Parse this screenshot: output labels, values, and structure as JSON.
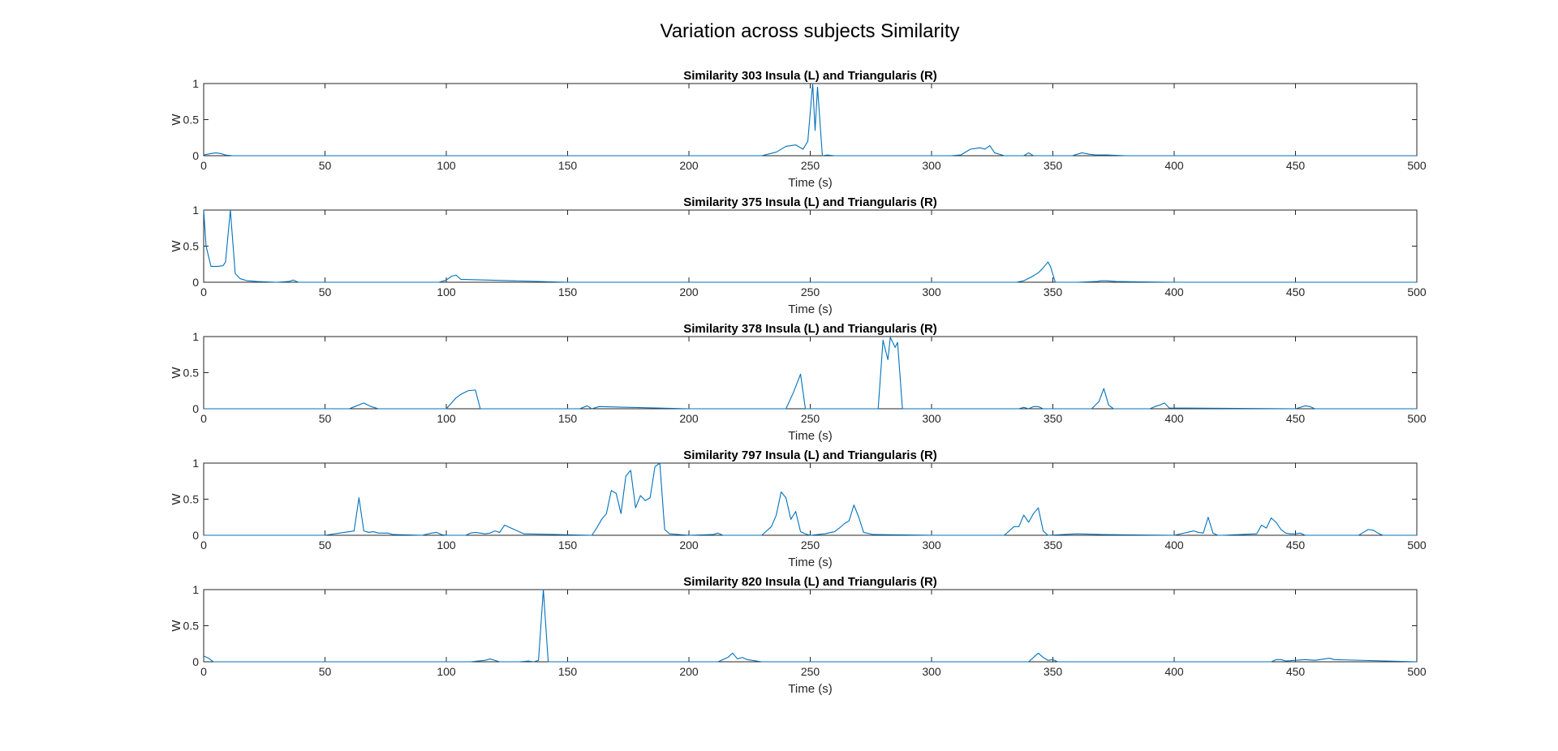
{
  "figure": {
    "title": "Variation across subjects Similarity",
    "line_color": "#0072BD",
    "axis_color": "#262626"
  },
  "chart_data": [
    {
      "type": "line",
      "title": "Similarity 303 Insula (L) and Triangularis (R)",
      "xlabel": "Time (s)",
      "ylabel": "W",
      "xlim": [
        0,
        500
      ],
      "ylim": [
        0,
        1
      ],
      "xticks": [
        "0",
        "50",
        "100",
        "150",
        "200",
        "250",
        "300",
        "350",
        "400",
        "450",
        "500"
      ],
      "yticks": [
        "0",
        "0.5",
        "1"
      ],
      "grid": false,
      "x": [
        0,
        3,
        5,
        7,
        9,
        12,
        50,
        100,
        150,
        200,
        230,
        236,
        240,
        244,
        247,
        249,
        251,
        252,
        253,
        255,
        257,
        260,
        265,
        300,
        308,
        312,
        316,
        318,
        320,
        322,
        324,
        326,
        330,
        338,
        340,
        342,
        350,
        358,
        362,
        365,
        368,
        372,
        380,
        400,
        450,
        500
      ],
      "y": [
        0.01,
        0.03,
        0.04,
        0.03,
        0.01,
        0.0,
        0.0,
        0.0,
        0.0,
        0.0,
        0.0,
        0.05,
        0.13,
        0.15,
        0.09,
        0.2,
        1.0,
        0.35,
        0.95,
        0.0,
        0.01,
        0.0,
        0.0,
        0.0,
        0.0,
        0.01,
        0.09,
        0.1,
        0.11,
        0.09,
        0.14,
        0.04,
        0.0,
        0.0,
        0.04,
        0.0,
        0.0,
        0.0,
        0.04,
        0.02,
        0.01,
        0.01,
        0.0,
        0.0,
        0.0,
        0.0
      ]
    },
    {
      "type": "line",
      "title": "Similarity 375 Insula (L) and Triangularis (R)",
      "xlabel": "Time (s)",
      "ylabel": "W",
      "xlim": [
        0,
        500
      ],
      "ylim": [
        0,
        1
      ],
      "xticks": [
        "0",
        "50",
        "100",
        "150",
        "200",
        "250",
        "300",
        "350",
        "400",
        "450",
        "500"
      ],
      "yticks": [
        "0",
        "0.5",
        "1"
      ],
      "grid": false,
      "x": [
        0,
        1,
        3,
        6,
        8,
        9,
        11,
        13,
        15,
        18,
        22,
        30,
        35,
        37,
        39,
        50,
        97,
        100,
        102,
        104,
        106,
        150,
        200,
        300,
        335,
        338,
        341,
        344,
        346,
        348,
        349,
        351,
        360,
        368,
        370,
        372,
        376,
        400,
        450,
        500
      ],
      "y": [
        1.0,
        0.5,
        0.22,
        0.22,
        0.23,
        0.28,
        1.0,
        0.12,
        0.05,
        0.02,
        0.01,
        0.0,
        0.01,
        0.03,
        0.0,
        0.0,
        0.0,
        0.03,
        0.08,
        0.1,
        0.04,
        0.0,
        0.0,
        0.0,
        0.0,
        0.02,
        0.07,
        0.13,
        0.2,
        0.28,
        0.22,
        0.0,
        0.0,
        0.01,
        0.02,
        0.02,
        0.01,
        0.0,
        0.0,
        0.0
      ]
    },
    {
      "type": "line",
      "title": "Similarity 378 Insula (L) and Triangularis (R)",
      "xlabel": "Time (s)",
      "ylabel": "W",
      "xlim": [
        0,
        500
      ],
      "ylim": [
        0,
        1
      ],
      "xticks": [
        "0",
        "50",
        "100",
        "150",
        "200",
        "250",
        "300",
        "350",
        "400",
        "450",
        "500"
      ],
      "yticks": [
        "0",
        "0.5",
        "1"
      ],
      "grid": false,
      "x": [
        0,
        60,
        63,
        66,
        69,
        72,
        100,
        104,
        106,
        109,
        112,
        114,
        150,
        155,
        158,
        160,
        163,
        200,
        240,
        243,
        246,
        248,
        250,
        270,
        276,
        278,
        280,
        282,
        283,
        285,
        286,
        288,
        290,
        300,
        336,
        338,
        340,
        342,
        344,
        346,
        366,
        369,
        371,
        373,
        375,
        390,
        392,
        394,
        396,
        398,
        450,
        452,
        454,
        456,
        458,
        500
      ],
      "y": [
        0.0,
        0.0,
        0.04,
        0.08,
        0.03,
        0.0,
        0.0,
        0.15,
        0.2,
        0.25,
        0.26,
        0.0,
        0.0,
        0.0,
        0.04,
        0.0,
        0.03,
        0.0,
        0.0,
        0.22,
        0.48,
        0.0,
        0.0,
        0.0,
        0.0,
        0.0,
        0.95,
        0.68,
        0.99,
        0.85,
        0.92,
        0.0,
        0.0,
        0.0,
        0.0,
        0.02,
        0.0,
        0.03,
        0.03,
        0.0,
        0.0,
        0.1,
        0.28,
        0.05,
        0.0,
        0.0,
        0.03,
        0.05,
        0.08,
        0.01,
        0.0,
        0.02,
        0.04,
        0.03,
        0.0,
        0.0
      ]
    },
    {
      "type": "line",
      "title": "Similarity 797 Insula (L) and Triangularis (R)",
      "xlabel": "Time (s)",
      "ylabel": "W",
      "xlim": [
        0,
        500
      ],
      "ylim": [
        0,
        1
      ],
      "xticks": [
        "0",
        "50",
        "100",
        "150",
        "200",
        "250",
        "300",
        "350",
        "400",
        "450",
        "500"
      ],
      "yticks": [
        "0",
        "0.5",
        "1"
      ],
      "grid": false,
      "x": [
        0,
        50,
        56,
        60,
        62,
        64,
        66,
        68,
        70,
        72,
        76,
        78,
        90,
        94,
        96,
        98,
        100,
        108,
        110,
        112,
        116,
        118,
        120,
        122,
        124,
        128,
        132,
        160,
        162,
        164,
        166,
        168,
        170,
        172,
        174,
        176,
        178,
        180,
        182,
        184,
        186,
        188,
        190,
        192,
        200,
        210,
        212,
        214,
        230,
        234,
        236,
        238,
        240,
        242,
        244,
        246,
        248,
        250,
        256,
        260,
        262,
        264,
        266,
        268,
        270,
        272,
        276,
        300,
        330,
        334,
        336,
        338,
        340,
        342,
        344,
        346,
        348,
        360,
        370,
        400,
        408,
        410,
        412,
        414,
        416,
        418,
        420,
        434,
        436,
        438,
        440,
        442,
        444,
        446,
        448,
        450,
        452,
        454,
        456,
        460,
        476,
        478,
        480,
        482,
        484,
        486,
        500
      ],
      "y": [
        0.0,
        0.0,
        0.03,
        0.05,
        0.06,
        0.52,
        0.06,
        0.04,
        0.05,
        0.03,
        0.03,
        0.01,
        0.0,
        0.03,
        0.04,
        0.01,
        0.0,
        0.0,
        0.03,
        0.04,
        0.02,
        0.03,
        0.06,
        0.04,
        0.14,
        0.08,
        0.02,
        0.0,
        0.1,
        0.22,
        0.3,
        0.62,
        0.58,
        0.3,
        0.82,
        0.9,
        0.38,
        0.55,
        0.48,
        0.52,
        0.95,
        1.0,
        0.08,
        0.02,
        0.0,
        0.01,
        0.03,
        0.0,
        0.0,
        0.12,
        0.28,
        0.6,
        0.52,
        0.22,
        0.33,
        0.05,
        0.02,
        0.0,
        0.02,
        0.05,
        0.1,
        0.16,
        0.2,
        0.42,
        0.25,
        0.04,
        0.01,
        0.0,
        0.0,
        0.12,
        0.12,
        0.28,
        0.18,
        0.3,
        0.38,
        0.06,
        0.0,
        0.02,
        0.01,
        0.0,
        0.06,
        0.04,
        0.03,
        0.25,
        0.03,
        0.0,
        0.0,
        0.02,
        0.14,
        0.1,
        0.24,
        0.18,
        0.08,
        0.03,
        0.02,
        0.02,
        0.03,
        0.0,
        0.0,
        0.0,
        0.0,
        0.04,
        0.08,
        0.07,
        0.03,
        0.0,
        0.0
      ]
    },
    {
      "type": "line",
      "title": "Similarity 820 Insula (L) and Triangularis (R)",
      "xlabel": "Time (s)",
      "ylabel": "W",
      "xlim": [
        0,
        500
      ],
      "ylim": [
        0,
        1
      ],
      "xticks": [
        "0",
        "50",
        "100",
        "150",
        "200",
        "250",
        "300",
        "350",
        "400",
        "450",
        "500"
      ],
      "yticks": [
        "0",
        "0.5",
        "1"
      ],
      "grid": false,
      "x": [
        0,
        2,
        4,
        50,
        110,
        116,
        118,
        120,
        122,
        130,
        134,
        136,
        138,
        140,
        142,
        144,
        150,
        200,
        212,
        216,
        218,
        220,
        222,
        224,
        226,
        230,
        300,
        340,
        342,
        344,
        346,
        348,
        350,
        352,
        356,
        400,
        440,
        442,
        444,
        446,
        450,
        454,
        458,
        460,
        462,
        464,
        466,
        500
      ],
      "y": [
        0.08,
        0.05,
        0.0,
        0.0,
        0.0,
        0.02,
        0.04,
        0.02,
        0.0,
        0.0,
        0.01,
        0.0,
        0.02,
        1.0,
        0.0,
        0.0,
        0.0,
        0.0,
        0.0,
        0.06,
        0.12,
        0.04,
        0.06,
        0.03,
        0.02,
        0.0,
        0.0,
        0.0,
        0.06,
        0.12,
        0.06,
        0.02,
        0.03,
        0.0,
        0.0,
        0.0,
        0.0,
        0.03,
        0.03,
        0.01,
        0.02,
        0.03,
        0.02,
        0.03,
        0.04,
        0.05,
        0.03,
        0.0
      ]
    }
  ]
}
